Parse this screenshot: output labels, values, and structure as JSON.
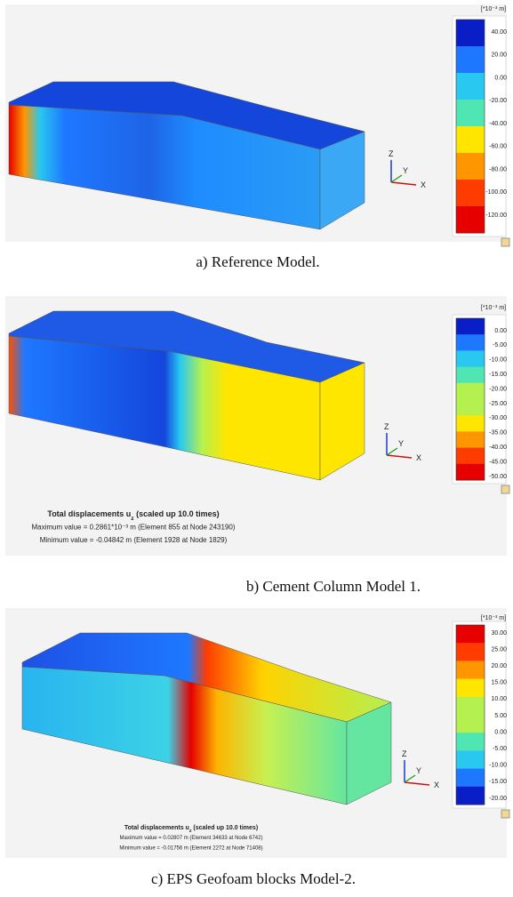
{
  "panels": [
    {
      "caption": "a) Reference Model.",
      "unit": "[*10⁻³ m]",
      "scale": [
        "40.00",
        "20.00",
        "0.00",
        "-20.00",
        "-40.00",
        "-60.00",
        "-80.00",
        "-100.00",
        "-120.00"
      ],
      "triad": {
        "z": "Z",
        "y": "Y",
        "x": "X"
      }
    },
    {
      "caption": "b) Cement Column Model 1.",
      "unit": "[*10⁻³ m]",
      "scale": [
        "0.00",
        "-5.00",
        "-10.00",
        "-15.00",
        "-20.00",
        "-25.00",
        "-30.00",
        "-35.00",
        "-40.00",
        "-45.00",
        "-50.00"
      ],
      "triad": {
        "z": "Z",
        "y": "Y",
        "x": "X"
      },
      "info": {
        "title_pre": "Total displacements u",
        "title_sub": "z",
        "title_post": " (scaled up 10.0 times)",
        "max": "Maximum value = 0.2861*10⁻³ m (Element 855 at Node 243190)",
        "min": "Minimum value = -0.04842 m (Element 1928 at Node 1829)"
      }
    },
    {
      "caption": "c) EPS Geofoam blocks Model-2.",
      "unit": "[*10⁻³ m]",
      "scale": [
        "30.00",
        "25.00",
        "20.00",
        "15.00",
        "10.00",
        "5.00",
        "0.00",
        "-5.00",
        "-10.00",
        "-15.00",
        "-20.00"
      ],
      "triad": {
        "z": "Z",
        "y": "Y",
        "x": "X"
      },
      "info": {
        "title_pre": "Total displacements u",
        "title_sub": "z",
        "title_post": " (scaled up 10.0 times)",
        "max": "Maximum value = 0.02807 m (Element 34633 at Node 6742)",
        "min": "Minimum value = -0.01756 m (Element 2272 at Node 71408)"
      }
    }
  ]
}
